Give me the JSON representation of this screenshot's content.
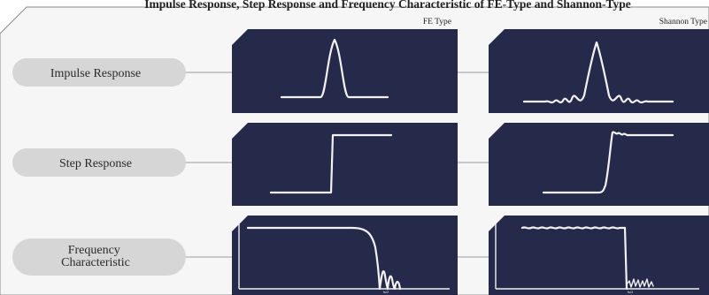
{
  "title": "Impulse Response, Step Response and Frequency Characteristic of FE-Type and Shannon-Type",
  "columns": {
    "fe": "FE Type",
    "shannon": "Shannon Type"
  },
  "rows": [
    {
      "label_lines": [
        "Impulse Response"
      ]
    },
    {
      "label_lines": [
        "Step Response"
      ]
    },
    {
      "label_lines": [
        "Frequency",
        "Characteristic"
      ]
    }
  ],
  "freq_axis_label": "fs/2",
  "colors": {
    "panel": "#252a4a",
    "pill": "#d6d6d6",
    "waveform": "#f2f2f2",
    "frame": "#f6f6f6"
  }
}
